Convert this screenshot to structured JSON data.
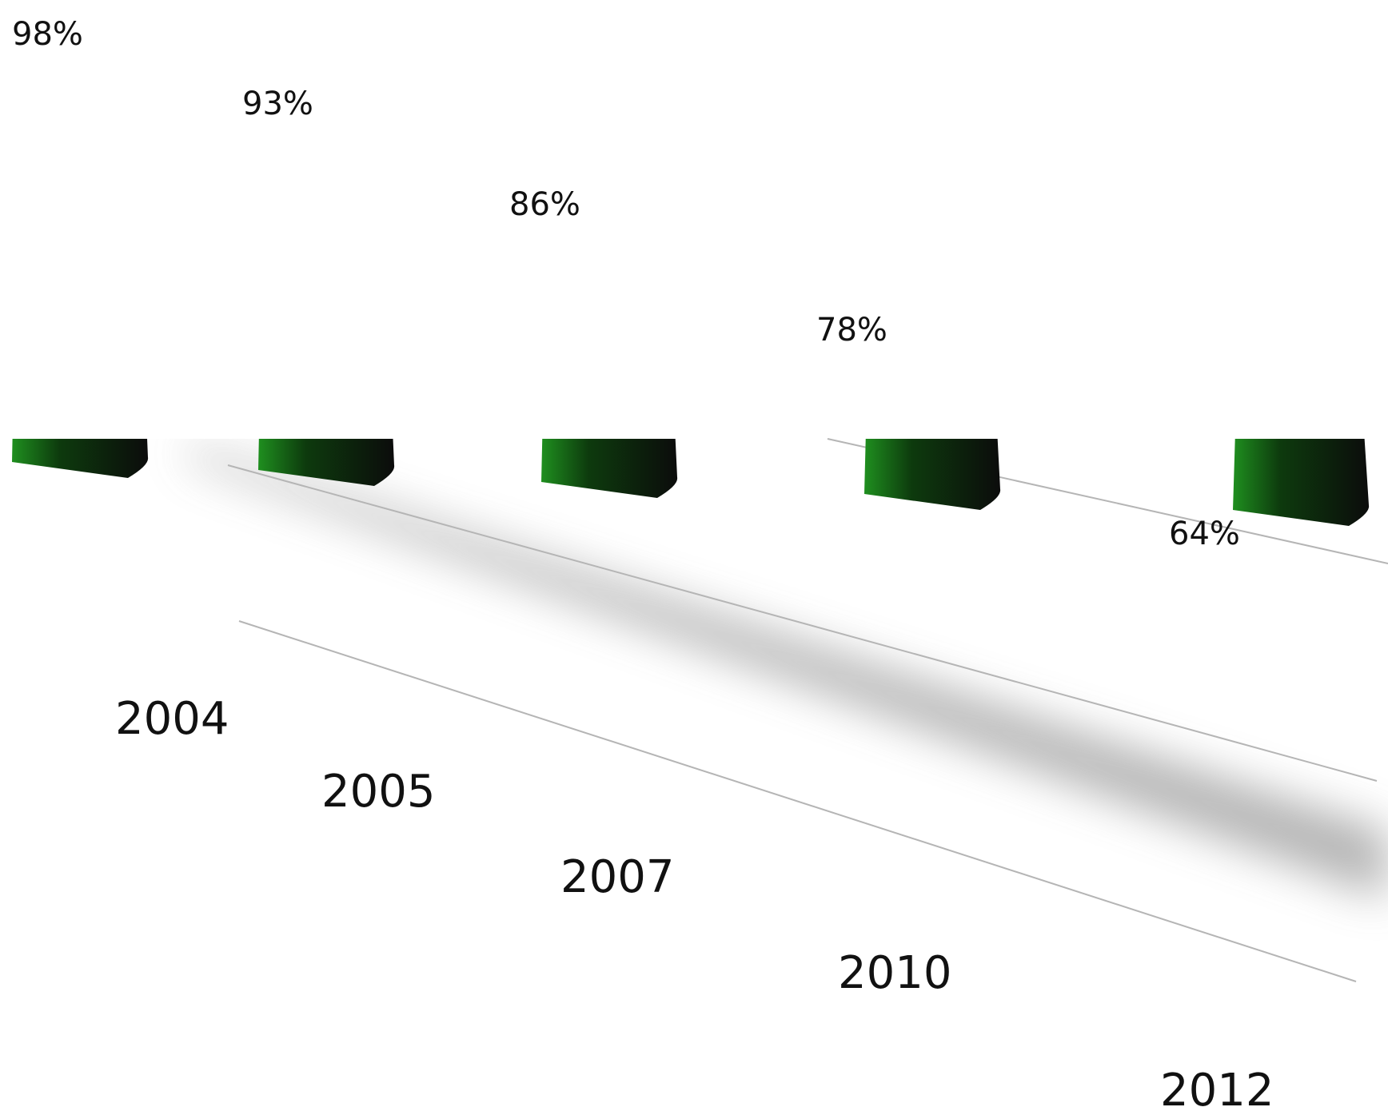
{
  "chart_data": {
    "type": "bar",
    "title": "",
    "xlabel": "",
    "ylabel": "",
    "categories": [
      "2004",
      "2005",
      "2007",
      "2010",
      "2012"
    ],
    "values": [
      98,
      93,
      86,
      78,
      64
    ],
    "value_labels": [
      "98%",
      "93%",
      "86%",
      "78%",
      "64%"
    ],
    "unit": "%",
    "ylim": [
      0,
      100
    ],
    "grid": true,
    "legend": "none",
    "bar_color": "#1e8a1e",
    "bar_shadow_color": "#111111"
  }
}
